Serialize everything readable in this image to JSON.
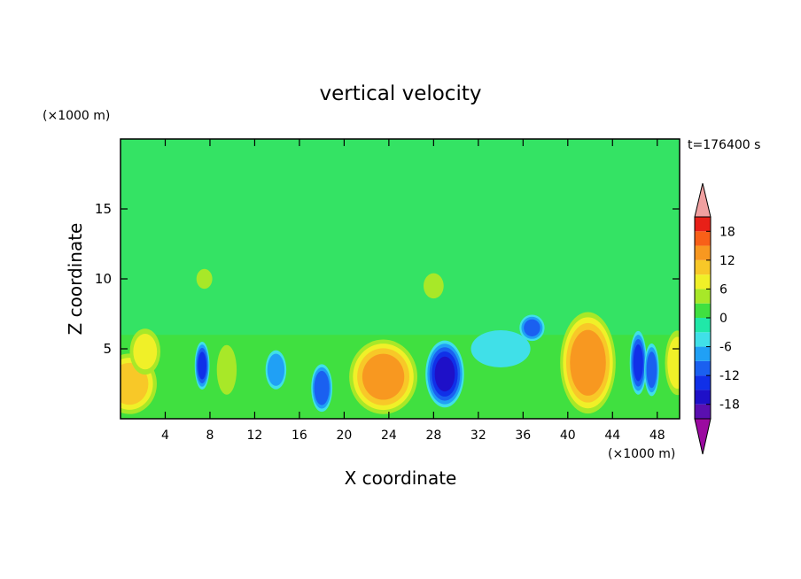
{
  "chart_data": {
    "type": "heatmap",
    "title": "vertical velocity",
    "xlabel": "X coordinate",
    "ylabel": "Z coordinate",
    "x_unit": "(×1000 m)",
    "y_unit": "(×1000 m)",
    "time_label": "t=176400 s",
    "xlim": [
      0,
      50
    ],
    "ylim": [
      0,
      20
    ],
    "x_ticks": [
      4,
      8,
      12,
      16,
      20,
      24,
      28,
      32,
      36,
      40,
      44,
      48
    ],
    "y_ticks": [
      5,
      10,
      15
    ],
    "colorbar": {
      "levels": [
        -21,
        -18,
        -15,
        -12,
        -9,
        -6,
        -3,
        0,
        3,
        6,
        9,
        12,
        15,
        18,
        21
      ],
      "tick_labels": [
        18,
        12,
        6,
        0,
        -6,
        -12,
        -18
      ],
      "colors": [
        "#9b0aa0",
        "#5a0fb0",
        "#1e10c8",
        "#1030e8",
        "#1a60f0",
        "#20a0f5",
        "#40e0e8",
        "#20e8a8",
        "#40e040",
        "#a8e828",
        "#f0f028",
        "#f8c828",
        "#f89820",
        "#f86018",
        "#e82018",
        "#f0a0a0"
      ],
      "below_color": "#9b0aa0",
      "above_color": "#f0a0a0"
    },
    "cells": {
      "positive": [
        {
          "x": 0.8,
          "z": 2.5,
          "w": 2.6,
          "h": 2.3,
          "amp": 10
        },
        {
          "x": 2.2,
          "z": 4.8,
          "w": 1.5,
          "h": 1.8,
          "amp": 6
        },
        {
          "x": 9.5,
          "z": 3.5,
          "w": 1.0,
          "h": 2.0,
          "amp": 4
        },
        {
          "x": 23.5,
          "z": 3.0,
          "w": 3.2,
          "h": 2.8,
          "amp": 13
        },
        {
          "x": 41.8,
          "z": 4.0,
          "w": 2.6,
          "h": 3.8,
          "amp": 14
        },
        {
          "x": 49.8,
          "z": 4.0,
          "w": 1.2,
          "h": 2.5,
          "amp": 7
        },
        {
          "x": 28.0,
          "z": 9.5,
          "w": 1.0,
          "h": 1.0,
          "amp": 5
        },
        {
          "x": 7.5,
          "z": 10.0,
          "w": 0.8,
          "h": 0.8,
          "amp": 4
        }
      ],
      "negative": [
        {
          "x": 7.3,
          "z": 3.8,
          "w": 0.7,
          "h": 1.8,
          "amp": -12
        },
        {
          "x": 13.9,
          "z": 3.5,
          "w": 1.0,
          "h": 1.5,
          "amp": -8
        },
        {
          "x": 18.0,
          "z": 2.2,
          "w": 1.0,
          "h": 1.8,
          "amp": -11
        },
        {
          "x": 29.0,
          "z": 3.2,
          "w": 1.8,
          "h": 2.5,
          "amp": -15
        },
        {
          "x": 36.8,
          "z": 6.5,
          "w": 1.2,
          "h": 1.0,
          "amp": -9
        },
        {
          "x": 46.3,
          "z": 4.0,
          "w": 0.8,
          "h": 2.4,
          "amp": -12
        },
        {
          "x": 47.5,
          "z": 3.5,
          "w": 0.7,
          "h": 2.0,
          "amp": -10
        },
        {
          "x": 34.0,
          "z": 5.0,
          "w": 3.0,
          "h": 1.5,
          "amp": -4
        }
      ]
    }
  }
}
